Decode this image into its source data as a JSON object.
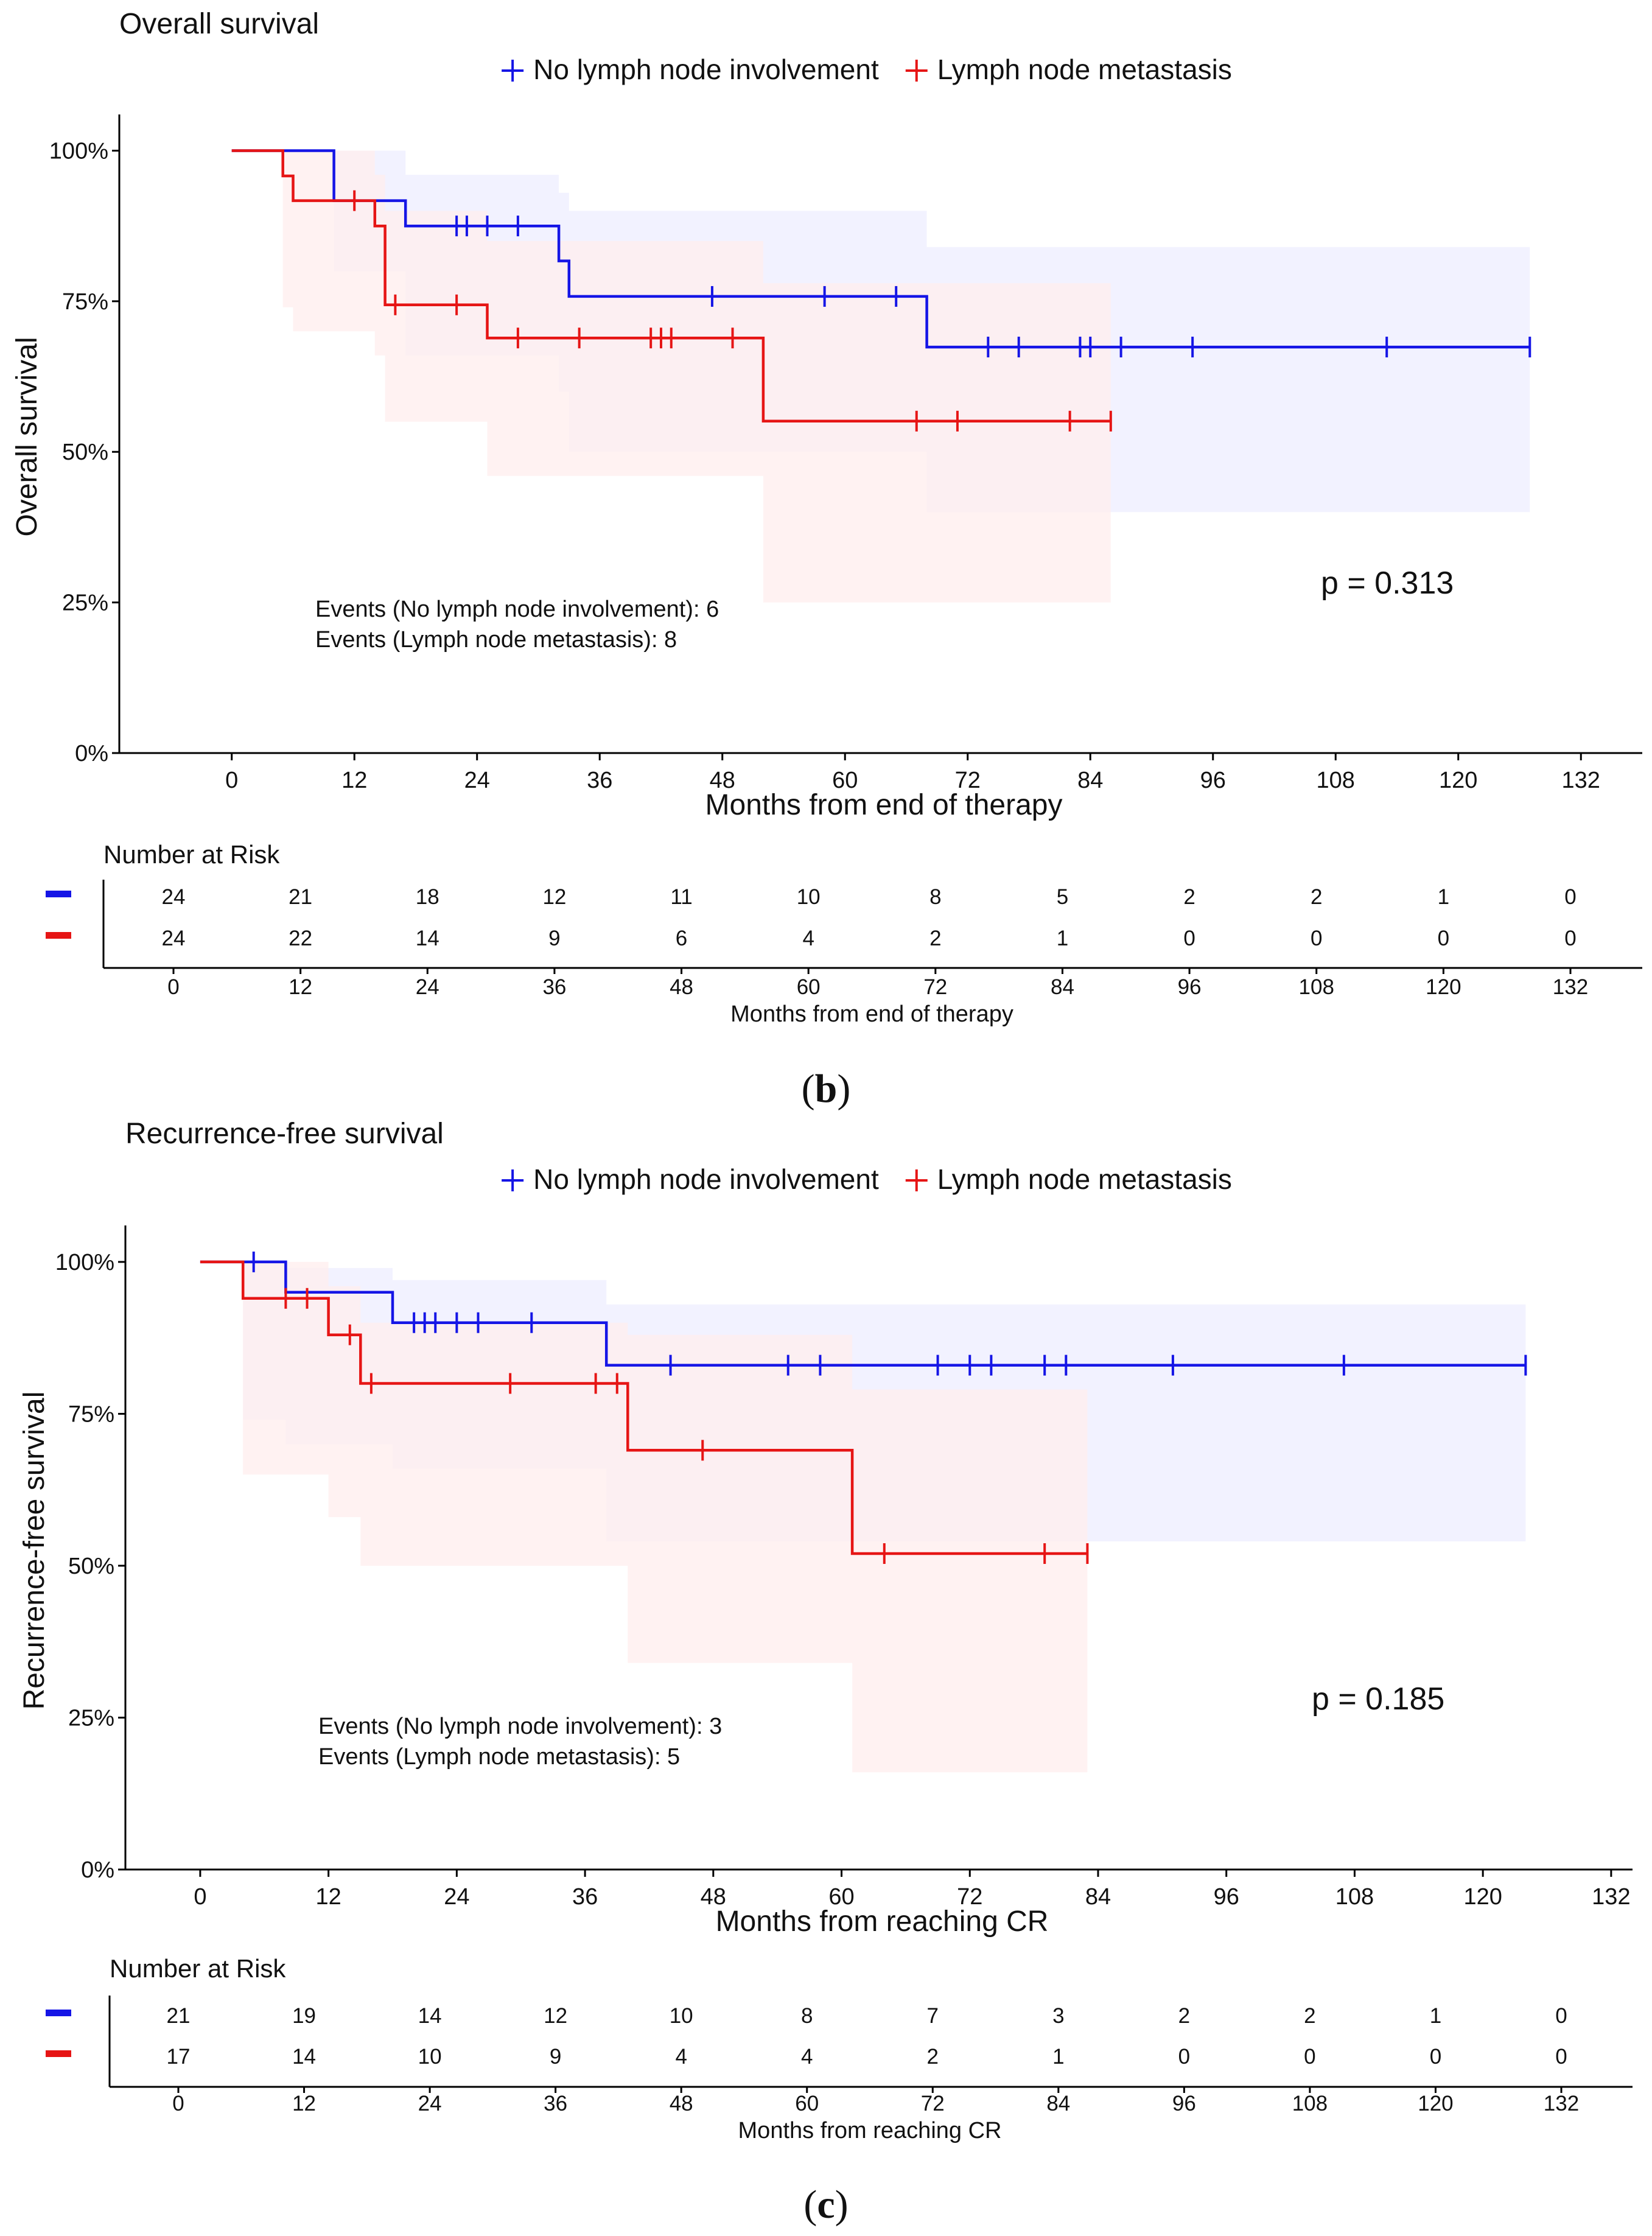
{
  "legend": {
    "no_node_label": "No lymph node involvement",
    "node_label": "Lymph node metastasis"
  },
  "colors": {
    "no_node": "#1515e6",
    "node": "#e61515",
    "no_node_band": "#eeeeff",
    "node_band": "#ffeded",
    "axis": "#000000"
  },
  "chart_data": [
    {
      "type": "line",
      "subtype": "kaplan-meier",
      "title": "Overall survival",
      "xlabel": "Months from end of therapy",
      "ylabel": "Overall survival",
      "xlim": [
        -11,
        138
      ],
      "ylim": [
        0,
        1.05
      ],
      "x_ticks": [
        0,
        12,
        24,
        36,
        48,
        60,
        72,
        84,
        96,
        108,
        120,
        132
      ],
      "y_ticks": [
        0,
        0.25,
        0.5,
        0.75,
        1.0
      ],
      "y_tick_labels": [
        "0%",
        "25%",
        "50%",
        "75%",
        "100%"
      ],
      "p_value_text": "p = 0.313",
      "events_lines": [
        "Events (No lymph node involvement): 6",
        "Events (Lymph node metastasis): 8"
      ],
      "series": [
        {
          "name": "No lymph node involvement",
          "color_key": "no_node",
          "steps": [
            [
              0,
              1.0
            ],
            [
              10,
              0.917
            ],
            [
              17,
              0.875
            ],
            [
              32,
              0.817
            ],
            [
              33,
              0.758
            ],
            [
              68,
              0.674
            ],
            [
              127,
              0.674
            ]
          ],
          "censors": [
            22,
            23,
            25,
            28,
            47,
            58,
            65,
            74,
            77,
            83,
            84,
            87,
            94,
            113,
            127
          ],
          "ci": [
            [
              0,
              1.0,
              1.0
            ],
            [
              10,
              1.0,
              0.8
            ],
            [
              17,
              0.96,
              0.66
            ],
            [
              32,
              0.93,
              0.6
            ],
            [
              33,
              0.9,
              0.5
            ],
            [
              68,
              0.84,
              0.4
            ],
            [
              127,
              0.84,
              0.4
            ]
          ]
        },
        {
          "name": "Lymph node metastasis",
          "color_key": "node",
          "steps": [
            [
              0,
              1.0
            ],
            [
              5,
              0.958
            ],
            [
              6,
              0.917
            ],
            [
              14,
              0.875
            ],
            [
              15,
              0.744
            ],
            [
              25,
              0.689
            ],
            [
              52,
              0.551
            ],
            [
              86,
              0.551
            ]
          ],
          "censors": [
            12,
            16,
            22,
            28,
            34,
            41,
            42,
            43,
            49,
            67,
            71,
            82,
            86
          ],
          "ci": [
            [
              0,
              1.0,
              1.0
            ],
            [
              5,
              1.0,
              0.74
            ],
            [
              6,
              1.0,
              0.7
            ],
            [
              14,
              0.96,
              0.66
            ],
            [
              15,
              0.9,
              0.55
            ],
            [
              25,
              0.85,
              0.46
            ],
            [
              52,
              0.78,
              0.25
            ],
            [
              86,
              0.78,
              0.25
            ]
          ]
        }
      ],
      "risk_table": {
        "title": "Number at Risk",
        "times": [
          0,
          12,
          24,
          36,
          48,
          60,
          72,
          84,
          96,
          108,
          120,
          132
        ],
        "xlabel": "Months from end of therapy",
        "rows": [
          {
            "color_key": "no_node",
            "values": [
              "24",
              "21",
              "18",
              "12",
              "11",
              "10",
              "8",
              "5",
              "2",
              "2",
              "1",
              "0"
            ]
          },
          {
            "color_key": "node",
            "values": [
              "24",
              "22",
              "14",
              "9",
              "6",
              "4",
              "2",
              "1",
              "0",
              "0",
              "0",
              "0"
            ]
          }
        ]
      },
      "caption": {
        "open": "(",
        "letter": "b",
        "close": ")"
      }
    },
    {
      "type": "line",
      "subtype": "kaplan-meier",
      "title": "Recurrence-free survival",
      "xlabel": "Months from reaching CR",
      "ylabel": "Recurrence-free survival",
      "xlim": [
        -7,
        134
      ],
      "ylim": [
        0,
        1.05
      ],
      "x_ticks": [
        0,
        12,
        24,
        36,
        48,
        60,
        72,
        84,
        96,
        108,
        120,
        132
      ],
      "y_ticks": [
        0,
        0.25,
        0.5,
        0.75,
        1.0
      ],
      "y_tick_labels": [
        "0%",
        "25%",
        "50%",
        "75%",
        "100%"
      ],
      "p_value_text": "p = 0.185",
      "events_lines": [
        "Events (No lymph node involvement): 3",
        "Events (Lymph node metastasis): 5"
      ],
      "series": [
        {
          "name": "No lymph node involvement",
          "color_key": "no_node",
          "steps": [
            [
              0,
              1.0
            ],
            [
              8,
              0.95
            ],
            [
              18,
              0.9
            ],
            [
              38,
              0.83
            ],
            [
              124,
              0.83
            ]
          ],
          "censors": [
            5,
            20,
            21,
            22,
            24,
            26,
            31,
            44,
            55,
            58,
            69,
            72,
            74,
            79,
            81,
            91,
            107,
            124
          ],
          "ci": [
            [
              0,
              1.0,
              1.0
            ],
            [
              4,
              1.0,
              0.74
            ],
            [
              8,
              0.99,
              0.7
            ],
            [
              18,
              0.97,
              0.66
            ],
            [
              38,
              0.93,
              0.54
            ],
            [
              124,
              0.93,
              0.54
            ]
          ]
        },
        {
          "name": "Lymph node metastasis",
          "color_key": "node",
          "steps": [
            [
              0,
              1.0
            ],
            [
              4,
              0.94
            ],
            [
              12,
              0.88
            ],
            [
              15,
              0.8
            ],
            [
              40,
              0.69
            ],
            [
              61,
              0.52
            ],
            [
              83,
              0.52
            ]
          ],
          "censors": [
            8,
            10,
            14,
            16,
            29,
            37,
            39,
            47,
            64,
            79,
            83
          ],
          "ci": [
            [
              0,
              1.0,
              1.0
            ],
            [
              4,
              1.0,
              0.65
            ],
            [
              12,
              0.96,
              0.58
            ],
            [
              15,
              0.9,
              0.5
            ],
            [
              40,
              0.88,
              0.34
            ],
            [
              61,
              0.79,
              0.16
            ],
            [
              83,
              0.79,
              0.16
            ]
          ]
        }
      ],
      "risk_table": {
        "title": "Number at Risk",
        "times": [
          0,
          12,
          24,
          36,
          48,
          60,
          72,
          84,
          96,
          108,
          120,
          132
        ],
        "xlabel": "Months from reaching CR",
        "rows": [
          {
            "color_key": "no_node",
            "values": [
              "21",
              "19",
              "14",
              "12",
              "10",
              "8",
              "7",
              "3",
              "2",
              "2",
              "1",
              "0"
            ]
          },
          {
            "color_key": "node",
            "values": [
              "17",
              "14",
              "10",
              "9",
              "4",
              "4",
              "2",
              "1",
              "0",
              "0",
              "0",
              "0"
            ]
          }
        ]
      },
      "caption": {
        "open": "(",
        "letter": "c",
        "close": ")"
      }
    }
  ]
}
